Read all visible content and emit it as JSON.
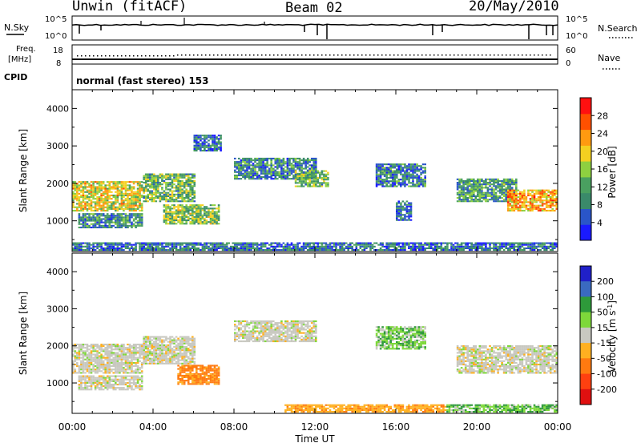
{
  "header": {
    "station": "Unwin (fitACF)",
    "beam": "Beam 02",
    "date": "20/May/2010"
  },
  "left_labels": {
    "nsky": "N.Sky",
    "freq": "Freq.",
    "freq_unit": "[MHz]",
    "cpid": "CPID"
  },
  "right_labels": {
    "nsearch": "N.Search",
    "nave": "Nave"
  },
  "noise_axis": {
    "left_top": "10^5",
    "left_bottom": "10^0",
    "right_top": "10^5",
    "right_bottom": "10^0"
  },
  "freq_axis": {
    "left_top": "18",
    "left_bottom": "8",
    "right_top": "60",
    "right_bottom": "0"
  },
  "cpid_text": "normal (fast stereo) 153",
  "time_axis": {
    "label": "Time UT",
    "ticks": [
      "00:00",
      "04:00",
      "08:00",
      "12:00",
      "16:00",
      "20:00",
      "00:00"
    ]
  },
  "chart_data": [
    {
      "type": "heatmap",
      "panel": "power",
      "ylabel": "Slant Range [km]",
      "ylim": [
        180,
        4500
      ],
      "yticks": [
        1000,
        2000,
        3000,
        4000
      ],
      "xlim": [
        0,
        24
      ],
      "colorbar": {
        "label": "Power [dB]",
        "ticks": [
          "4",
          "8",
          "12",
          "16",
          "20",
          "24",
          "28"
        ],
        "range": [
          0,
          30
        ]
      },
      "echo_bands": [
        {
          "t0": 0.0,
          "t1": 3.5,
          "r0": 1250,
          "r1": 2050,
          "level": 18
        },
        {
          "t0": 3.5,
          "t1": 6.0,
          "r0": 1500,
          "r1": 2250,
          "level": 12
        },
        {
          "t0": 0.3,
          "t1": 3.5,
          "r0": 800,
          "r1": 1200,
          "level": 8
        },
        {
          "t0": 4.5,
          "t1": 7.2,
          "r0": 900,
          "r1": 1400,
          "level": 14
        },
        {
          "t0": 6.0,
          "t1": 7.3,
          "r0": 2850,
          "r1": 3300,
          "level": 6
        },
        {
          "t0": 8.0,
          "t1": 12.0,
          "r0": 2100,
          "r1": 2650,
          "level": 8
        },
        {
          "t0": 11.0,
          "t1": 12.6,
          "r0": 1900,
          "r1": 2350,
          "level": 12
        },
        {
          "t0": 15.0,
          "t1": 17.5,
          "r0": 1900,
          "r1": 2500,
          "level": 7
        },
        {
          "t0": 16.0,
          "t1": 16.8,
          "r0": 1000,
          "r1": 1500,
          "level": 6
        },
        {
          "t0": 19.0,
          "t1": 22.0,
          "r0": 1500,
          "r1": 2100,
          "level": 10
        },
        {
          "t0": 21.5,
          "t1": 24.0,
          "r0": 1250,
          "r1": 1800,
          "level": 22
        },
        {
          "t0": 0.0,
          "t1": 24.0,
          "r0": 200,
          "r1": 400,
          "level": 6
        }
      ]
    },
    {
      "type": "heatmap",
      "panel": "velocity",
      "ylabel": "Slant Range [km]",
      "ylim": [
        180,
        4500
      ],
      "yticks": [
        1000,
        2000,
        3000,
        4000
      ],
      "xlim": [
        0,
        24
      ],
      "colorbar": {
        "label": "Velocity [m s^-1]",
        "ticks": [
          "200",
          "100",
          "50",
          "15",
          "-15",
          "-50",
          "-100",
          "-200"
        ],
        "range": [
          -250,
          250
        ]
      },
      "echo_bands": [
        {
          "t0": 0.0,
          "t1": 3.5,
          "r0": 1250,
          "r1": 2050,
          "level": 0
        },
        {
          "t0": 3.5,
          "t1": 6.0,
          "r0": 1500,
          "r1": 2250,
          "level": 0
        },
        {
          "t0": 0.3,
          "t1": 3.5,
          "r0": 800,
          "r1": 1200,
          "level": 0
        },
        {
          "t0": 5.2,
          "t1": 7.2,
          "r0": 950,
          "r1": 1450,
          "level": -60
        },
        {
          "t0": 8.0,
          "t1": 12.0,
          "r0": 2100,
          "r1": 2650,
          "level": 0
        },
        {
          "t0": 15.0,
          "t1": 17.5,
          "r0": 1900,
          "r1": 2500,
          "level": 25
        },
        {
          "t0": 19.0,
          "t1": 24.0,
          "r0": 1250,
          "r1": 2000,
          "level": 0
        },
        {
          "t0": 10.5,
          "t1": 18.5,
          "r0": 200,
          "r1": 400,
          "level": -40
        },
        {
          "t0": 18.5,
          "t1": 24.0,
          "r0": 200,
          "r1": 400,
          "level": 30
        }
      ]
    }
  ]
}
